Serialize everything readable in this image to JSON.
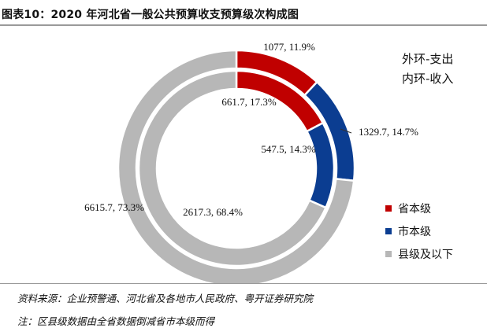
{
  "header": {
    "title": "图表10：2020 年河北省一般公共预算收支预算级次构成图"
  },
  "chart_data": {
    "type": "donut",
    "notes": [
      "外环-支出",
      "内环-收入"
    ],
    "colors": {
      "province": "#c00000",
      "city": "#0b3d91",
      "county": "#b7b7b7"
    },
    "legend": [
      {
        "label": "省本级",
        "key": "province"
      },
      {
        "label": "市本级",
        "key": "city"
      },
      {
        "label": "县级及以下",
        "key": "county"
      }
    ],
    "legend_position": "right",
    "outer_ring": {
      "name": "支出",
      "values": [
        {
          "key": "province",
          "value": 1077,
          "percent": 11.9,
          "label": "1077, 11.9%"
        },
        {
          "key": "city",
          "value": 1329.7,
          "percent": 14.7,
          "label": "1329.7, 14.7%"
        },
        {
          "key": "county",
          "value": 6615.7,
          "percent": 73.3,
          "label": "6615.7, 73.3%"
        }
      ]
    },
    "inner_ring": {
      "name": "收入",
      "values": [
        {
          "key": "province",
          "value": 661.7,
          "percent": 17.3,
          "label": "661.7, 17.3%"
        },
        {
          "key": "city",
          "value": 547.5,
          "percent": 14.3,
          "label": "547.5, 14.3%"
        },
        {
          "key": "county",
          "value": 2617.3,
          "percent": 68.4,
          "label": "2617.3, 68.4%"
        }
      ]
    }
  },
  "footer": {
    "source": "资料来源：企业预警通、河北省及各地市人民政府、粤开证券研究院",
    "note": "注：区县级数据由全省数据倒减省市本级而得"
  }
}
